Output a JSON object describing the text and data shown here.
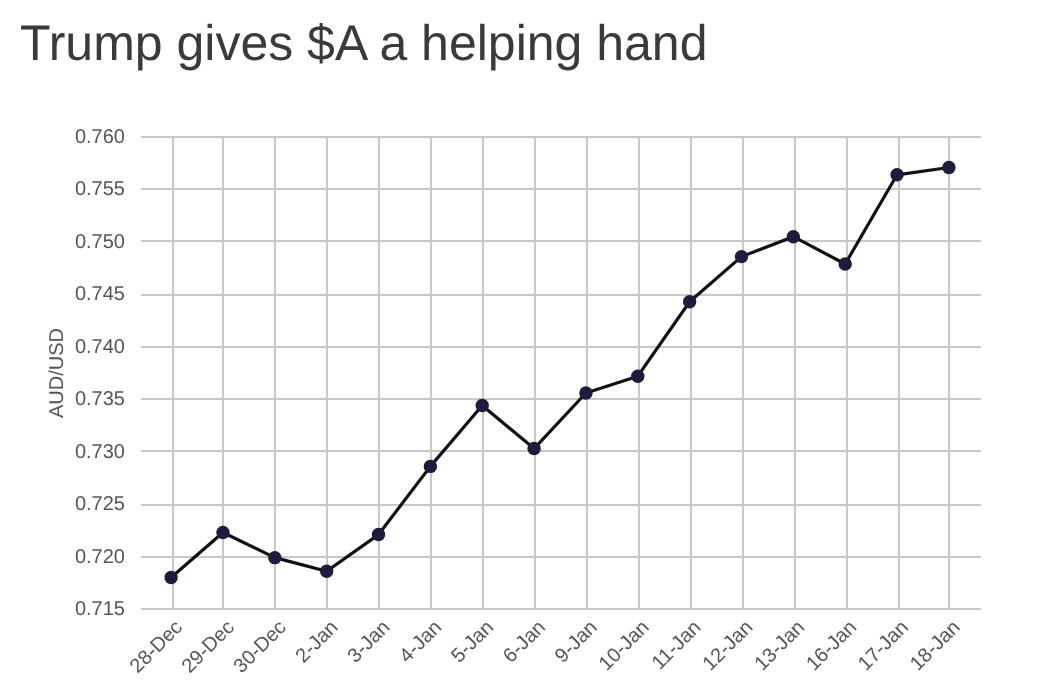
{
  "chart_data": {
    "type": "line",
    "title": "Trump gives $A a helping hand",
    "ylabel": "AUD/USD",
    "categories": [
      "28-Dec",
      "29-Dec",
      "30-Dec",
      "2-Jan",
      "3-Jan",
      "4-Jan",
      "5-Jan",
      "6-Jan",
      "9-Jan",
      "10-Jan",
      "11-Jan",
      "12-Jan",
      "13-Jan",
      "16-Jan",
      "17-Jan",
      "18-Jan"
    ],
    "series": [
      {
        "color": "#1c1c3c",
        "values": [
          0.7179,
          0.7222,
          0.7198,
          0.7185,
          0.722,
          0.7285,
          0.7343,
          0.7302,
          0.7355,
          0.7371,
          0.7442,
          0.7485,
          0.7504,
          0.7478,
          0.7563,
          0.757
        ]
      }
    ],
    "ylim": [
      0.715,
      0.76
    ],
    "yticks": [
      {
        "value": 0.715,
        "label": "0.715"
      },
      {
        "value": 0.72,
        "label": "0.720"
      },
      {
        "value": 0.725,
        "label": "0.725"
      },
      {
        "value": 0.73,
        "label": "0.730"
      },
      {
        "value": 0.735,
        "label": "0.735"
      },
      {
        "value": 0.74,
        "label": "0.740"
      },
      {
        "value": 0.745,
        "label": "0.745"
      },
      {
        "value": 0.75,
        "label": "0.750"
      },
      {
        "value": 0.755,
        "label": "0.755"
      },
      {
        "value": 0.76,
        "label": "0.760"
      }
    ],
    "grid": true,
    "marker": "circle",
    "line_style": "solid",
    "legend": false
  }
}
